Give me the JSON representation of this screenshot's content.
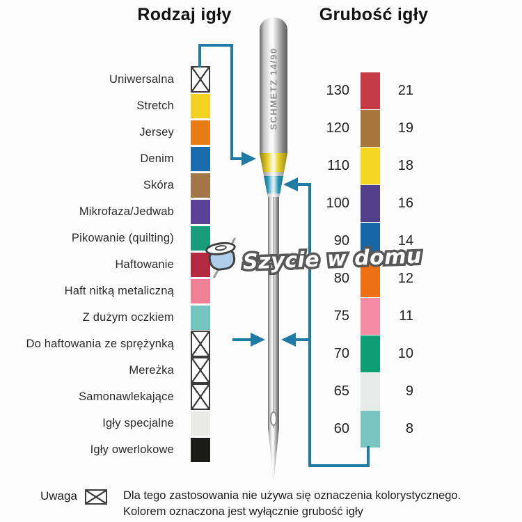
{
  "titles": {
    "left": "Rodzaj igły",
    "right": "Grubość igły"
  },
  "left_column": {
    "items": [
      {
        "label": "Uniwersalna",
        "swatch": "crossed"
      },
      {
        "label": "Stretch",
        "swatch": "#F4D224"
      },
      {
        "label": "Jersey",
        "swatch": "#E87D18"
      },
      {
        "label": "Denim",
        "swatch": "#1A6CAD"
      },
      {
        "label": "Skóra",
        "swatch": "#A3764A"
      },
      {
        "label": "Mikrofaza/Jedwab",
        "swatch": "#5B4197"
      },
      {
        "label": "Pikowanie (quilting)",
        "swatch": "#199C7B"
      },
      {
        "label": "Haftowanie",
        "swatch": "#B3293F"
      },
      {
        "label": "Haft nitką metaliczną",
        "swatch": "#EF8296"
      },
      {
        "label": "Z dużym oczkiem",
        "swatch": "#74C5BF"
      },
      {
        "label": "Do haftowania ze sprężynką",
        "swatch": "crossed"
      },
      {
        "label": "Mereżka",
        "swatch": "crossed"
      },
      {
        "label": "Samonawlekające",
        "swatch": "crossed"
      },
      {
        "label": "Igły specjalne",
        "swatch": "#E9EAE7"
      },
      {
        "label": "Igły owerlokowe",
        "swatch": "#1C1C1A"
      }
    ]
  },
  "right_column": {
    "rows": [
      {
        "metric": "130",
        "imperial": "21",
        "color": "#C53C47"
      },
      {
        "metric": "120",
        "imperial": "19",
        "color": "#A8763F"
      },
      {
        "metric": "110",
        "imperial": "18",
        "color": "#F4D722"
      },
      {
        "metric": "100",
        "imperial": "16",
        "color": "#523F8C"
      },
      {
        "metric": "90",
        "imperial": "14",
        "color": "#1766A5"
      },
      {
        "metric": "80",
        "imperial": "12",
        "color": "#ED7013"
      },
      {
        "metric": "75",
        "imperial": "11",
        "color": "#F18CA2"
      },
      {
        "metric": "70",
        "imperial": "10",
        "color": "#0D9E74"
      },
      {
        "metric": "65",
        "imperial": "9",
        "color": "#E7EAE8"
      },
      {
        "metric": "60",
        "imperial": "8",
        "color": "#7AC3BF"
      }
    ]
  },
  "needle": {
    "brand_text": "SCHMETZ 14/90",
    "upper_band_color": "#E8CF25",
    "lower_band_color": "#2191B4"
  },
  "watermark": {
    "text": "Szycie w domu",
    "spool_color": "#AECDE9"
  },
  "note": {
    "label": "Uwaga",
    "line1": "Dla tego zastosowania nie używa się oznaczenia kolorystycznego.",
    "line2": "Kolorem oznaczona jest wyłącznie grubość igły"
  },
  "colors": {
    "connector": "#1F7BA3",
    "background": "#FDFDFD"
  }
}
